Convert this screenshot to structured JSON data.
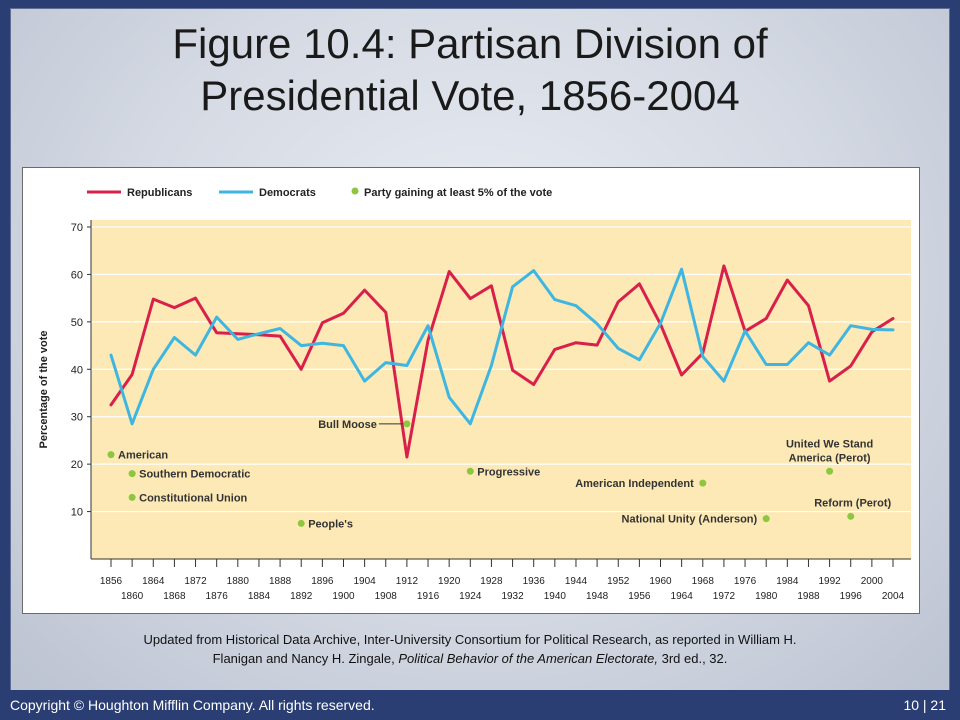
{
  "slide": {
    "title_line1": "Figure 10.4: Partisan Division of",
    "title_line2": "Presidential Vote, 1856-2004",
    "caption_line1": "Updated from Historical Data Archive, Inter-University Consortium for Political Research, as reported in William H.",
    "caption_line2_a": "Flanigan and Nancy H. Zingale, ",
    "caption_line2_italic": "Political Behavior of the American Electorate,",
    "caption_line2_b": " 3rd ed., 32.",
    "copyright": "Copyright © Houghton Mifflin Company. All rights reserved.",
    "page_number": "10 | 21"
  },
  "colors": {
    "republicans": "#d8204a",
    "democrats": "#3fb6e0",
    "third_party": "#8dc63f",
    "plot_background": "#fce9b5",
    "slide_frame": "#2b3e73"
  },
  "chart_data": {
    "type": "line",
    "title": "",
    "xlabel": "",
    "ylabel": "Percentage of the vote",
    "ylim": [
      0,
      70
    ],
    "yticks": [
      10,
      20,
      30,
      40,
      50,
      60,
      70
    ],
    "xlim": [
      1856,
      2004
    ],
    "xticks_top": [
      "1856",
      "1864",
      "1872",
      "1880",
      "1888",
      "1896",
      "1904",
      "1912",
      "1920",
      "1928",
      "1936",
      "1944",
      "1952",
      "1960",
      "1968",
      "1976",
      "1984",
      "1992",
      "2000"
    ],
    "xticks_bottom": [
      "1860",
      "1868",
      "1876",
      "1884",
      "1892",
      "1900",
      "1908",
      "1916",
      "1924",
      "1932",
      "1940",
      "1948",
      "1956",
      "1964",
      "1972",
      "1980",
      "1988",
      "1996",
      "2004"
    ],
    "grid": "horizontal",
    "legend_position": "top",
    "legend": [
      "Republicans",
      "Democrats",
      "Party gaining at least 5% of the vote"
    ],
    "x": [
      1856,
      1860,
      1864,
      1868,
      1872,
      1876,
      1880,
      1884,
      1888,
      1892,
      1896,
      1900,
      1904,
      1908,
      1912,
      1916,
      1920,
      1924,
      1928,
      1932,
      1936,
      1940,
      1944,
      1948,
      1952,
      1956,
      1960,
      1964,
      1968,
      1972,
      1976,
      1980,
      1984,
      1988,
      1992,
      1996,
      2000,
      2004
    ],
    "series": [
      {
        "name": "Republicans",
        "values": [
          32.5,
          38.9,
          54.8,
          53.0,
          55.0,
          47.7,
          47.5,
          47.3,
          47.0,
          40.0,
          49.8,
          51.8,
          56.7,
          52.0,
          21.5,
          46.1,
          60.6,
          54.9,
          57.6,
          39.8,
          36.8,
          44.2,
          45.6,
          45.1,
          54.2,
          58.0,
          49.5,
          38.8,
          43.4,
          61.8,
          48.0,
          50.7,
          58.8,
          53.4,
          37.5,
          40.7,
          47.9,
          50.7
        ]
      },
      {
        "name": "Democrats",
        "values": [
          43.0,
          28.5,
          40.0,
          46.7,
          43.0,
          51.0,
          46.3,
          47.5,
          48.6,
          45.0,
          45.5,
          45.0,
          37.5,
          41.4,
          40.8,
          49.2,
          34.1,
          28.5,
          40.8,
          57.4,
          60.8,
          54.7,
          53.4,
          49.6,
          44.4,
          42.0,
          49.7,
          61.1,
          42.7,
          37.5,
          48.1,
          41.0,
          41.0,
          45.6,
          43.0,
          49.2,
          48.4,
          48.3
        ]
      }
    ],
    "third_parties": [
      {
        "label": "American",
        "year": 1856,
        "value": 22
      },
      {
        "label": "Southern Democratic",
        "year": 1860,
        "value": 18
      },
      {
        "label": "Constitutional Union",
        "year": 1860,
        "value": 13
      },
      {
        "label": "People's",
        "year": 1892,
        "value": 7.5
      },
      {
        "label": "Bull Moose",
        "year": 1912,
        "value": 28.5
      },
      {
        "label": "Progressive",
        "year": 1924,
        "value": 18.5
      },
      {
        "label": "American Independent",
        "year": 1968,
        "value": 16
      },
      {
        "label": "National Unity (Anderson)",
        "year": 1980,
        "value": 8.5
      },
      {
        "label": "United We Stand",
        "label2": "America (Perot)",
        "year": 1992,
        "value": 18.5
      },
      {
        "label": "Reform (Perot)",
        "year": 1996,
        "value": 9
      }
    ]
  }
}
